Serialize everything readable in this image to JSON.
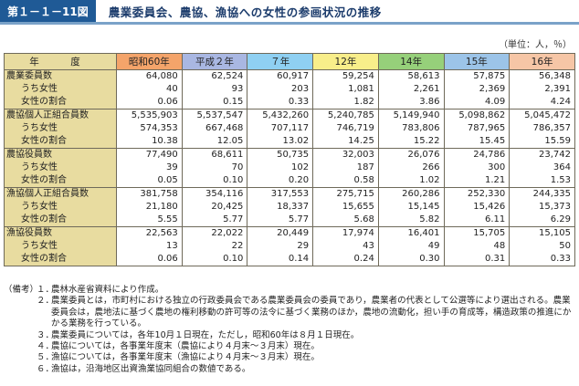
{
  "title": {
    "figure_no": "第１－１－11図",
    "text": "農業委員会、農協、漁協への女性の参画状況の推移"
  },
  "unit": "（単位：人，％）",
  "table": {
    "corner": "年　度",
    "columns": [
      {
        "label": "昭和60年",
        "color": "#f4a46a"
      },
      {
        "label": "平成２年",
        "color": "#a9b7e2"
      },
      {
        "label": "７年",
        "color": "#8fd0f2"
      },
      {
        "label": "12年",
        "color": "#f8ee8a"
      },
      {
        "label": "14年",
        "color": "#96d07a"
      },
      {
        "label": "15年",
        "color": "#9cc4e8"
      },
      {
        "label": "16年",
        "color": "#f6c6a6"
      }
    ],
    "rows": [
      {
        "label": "農業委員数",
        "sub": false,
        "values": [
          "64,080",
          "62,524",
          "60,917",
          "59,254",
          "58,613",
          "57,875",
          "56,348"
        ]
      },
      {
        "label": "うち女性",
        "sub": true,
        "values": [
          "40",
          "93",
          "203",
          "1,081",
          "2,261",
          "2,369",
          "2,391"
        ]
      },
      {
        "label": "女性の割合",
        "sub": true,
        "values": [
          "0.06",
          "0.15",
          "0.33",
          "1.82",
          "3.86",
          "4.09",
          "4.24"
        ]
      },
      {
        "label": "農協個人正組合員数",
        "sub": false,
        "values": [
          "5,535,903",
          "5,537,547",
          "5,432,260",
          "5,240,785",
          "5,149,940",
          "5,098,862",
          "5,045,472"
        ]
      },
      {
        "label": "うち女性",
        "sub": true,
        "values": [
          "574,353",
          "667,468",
          "707,117",
          "746,719",
          "783,806",
          "787,965",
          "786,357"
        ]
      },
      {
        "label": "女性の割合",
        "sub": true,
        "values": [
          "10.38",
          "12.05",
          "13.02",
          "14.25",
          "15.22",
          "15.45",
          "15.59"
        ]
      },
      {
        "label": "農協役員数",
        "sub": false,
        "values": [
          "77,490",
          "68,611",
          "50,735",
          "32,003",
          "26,076",
          "24,786",
          "23,742"
        ]
      },
      {
        "label": "うち女性",
        "sub": true,
        "values": [
          "39",
          "70",
          "102",
          "187",
          "266",
          "300",
          "364"
        ]
      },
      {
        "label": "女性の割合",
        "sub": true,
        "values": [
          "0.05",
          "0.10",
          "0.20",
          "0.58",
          "1.02",
          "1.21",
          "1.53"
        ]
      },
      {
        "label": "漁協個人正組合員数",
        "sub": false,
        "values": [
          "381,758",
          "354,116",
          "317,553",
          "275,715",
          "260,286",
          "252,330",
          "244,335"
        ]
      },
      {
        "label": "うち女性",
        "sub": true,
        "values": [
          "21,180",
          "20,425",
          "18,337",
          "15,655",
          "15,145",
          "15,426",
          "15,373"
        ]
      },
      {
        "label": "女性の割合",
        "sub": true,
        "values": [
          "5.55",
          "5.77",
          "5.77",
          "5.68",
          "5.82",
          "6.11",
          "6.29"
        ]
      },
      {
        "label": "漁協役員数",
        "sub": false,
        "values": [
          "22,563",
          "22,022",
          "20,449",
          "17,974",
          "16,401",
          "15,705",
          "15,105"
        ]
      },
      {
        "label": "うち女性",
        "sub": true,
        "values": [
          "13",
          "22",
          "29",
          "43",
          "49",
          "48",
          "50"
        ]
      },
      {
        "label": "女性の割合",
        "sub": true,
        "values": [
          "0.06",
          "0.10",
          "0.14",
          "0.24",
          "0.30",
          "0.31",
          "0.33"
        ]
      }
    ]
  },
  "notes": {
    "head": "（備考）",
    "items": [
      {
        "num": "１．",
        "text": "農林水産省資料により作成。"
      },
      {
        "num": "２．",
        "text": "農業委員とは，市町村における独立の行政委員会である農業委員会の委員であり，農業者の代表として公選等により選出される。農業委員会は，農地法に基づく農地の権利移動の許可等の法令に基づく業務のほか，農地の流動化，担い手の育成等，構造政策の推進にかかる業務を行っている。"
      },
      {
        "num": "３．",
        "text": "農業委員については，各年10月１日現在，ただし，昭和60年は８月１日現在。"
      },
      {
        "num": "４．",
        "text": "農協については，各事業年度末（農協により４月末～３月末）現在。"
      },
      {
        "num": "５．",
        "text": "漁協については，各事業年度末（漁協により４月末～３月末）現在。"
      },
      {
        "num": "６．",
        "text": "漁協は，沿海地区出資漁業協同組合の数値である。"
      }
    ]
  }
}
